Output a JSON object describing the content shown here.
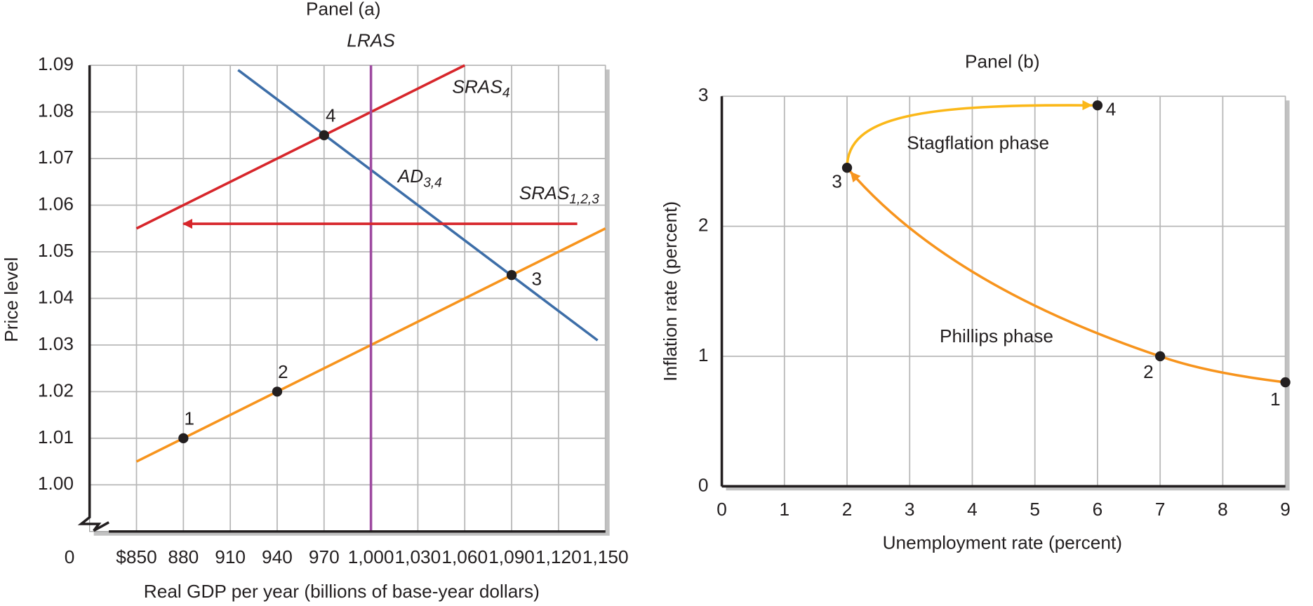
{
  "chart_data": [
    {
      "type": "line",
      "title": "Panel (a)",
      "x_label": "Real GDP per year (billions of base-year dollars)",
      "y_label": "Price level",
      "origin_label": "0",
      "xlim": [
        820,
        1150
      ],
      "ylim": [
        0.99,
        1.09
      ],
      "xticks": [
        {
          "value": 850,
          "label": "$850"
        },
        880,
        910,
        940,
        970,
        {
          "value": 1000,
          "label": "1,000"
        },
        {
          "value": 1030,
          "label": "1,030"
        },
        {
          "value": 1060,
          "label": "1,060"
        },
        {
          "value": 1090,
          "label": "1,090"
        },
        {
          "value": 1120,
          "label": "1,120"
        },
        {
          "value": 1150,
          "label": "1,150"
        }
      ],
      "yticks": [
        {
          "value": 1,
          "label": "1.00"
        },
        1.01,
        1.02,
        1.03,
        1.04,
        1.05,
        1.06,
        1.07,
        1.08,
        1.09
      ],
      "grid": true,
      "series": [
        {
          "name": "SRAS",
          "subscript": "1,2,3",
          "color": "#f7941d",
          "x": [
            850,
            1150
          ],
          "values": [
            1.005,
            1.055
          ]
        },
        {
          "name": "AD",
          "subscript": "3,4",
          "color": "#3d6ea8",
          "x": [
            915,
            1145
          ],
          "values": [
            1.089,
            1.031
          ]
        },
        {
          "name": "SRAS",
          "subscript": "4",
          "color": "#d7262b",
          "x": [
            850,
            1060
          ],
          "values": [
            1.055,
            1.09
          ]
        },
        {
          "name": "LRAS",
          "color": "#9e4aa0",
          "x": [
            1000,
            1000
          ],
          "values": [
            0.99,
            1.09
          ]
        }
      ],
      "points": {
        "labels": [
          "1",
          "2",
          "3",
          "4"
        ],
        "x": [
          880,
          940,
          1090,
          970
        ],
        "values": [
          1.01,
          1.02,
          1.045,
          1.075
        ]
      },
      "arrow": {
        "color": "#d7262b",
        "x": [
          1132,
          880
        ],
        "values": [
          1.056,
          1.056
        ]
      }
    },
    {
      "type": "curve",
      "title": "Panel (b)",
      "x_label": "Unemployment rate (percent)",
      "y_label": "Inflation rate (percent)",
      "xlim": [
        0,
        9
      ],
      "ylim": [
        0,
        3
      ],
      "xticks": [
        0,
        1,
        2,
        3,
        4,
        5,
        6,
        7,
        8,
        9
      ],
      "yticks": [
        0,
        1,
        2,
        3
      ],
      "grid": true,
      "series": [
        {
          "name": "Phillips phase",
          "color": "#f7941d",
          "x": [
            9,
            7,
            2
          ],
          "values": [
            0.8,
            1,
            2.45
          ]
        },
        {
          "name": "Stagflation phase",
          "color": "#fbb819",
          "x": [
            2,
            6
          ],
          "values": [
            2.45,
            2.93
          ]
        }
      ],
      "points": {
        "labels": [
          "1",
          "2",
          "3",
          "4"
        ],
        "x": [
          9,
          7,
          2,
          6
        ],
        "values": [
          0.8,
          1,
          2.45,
          2.93
        ]
      }
    }
  ]
}
